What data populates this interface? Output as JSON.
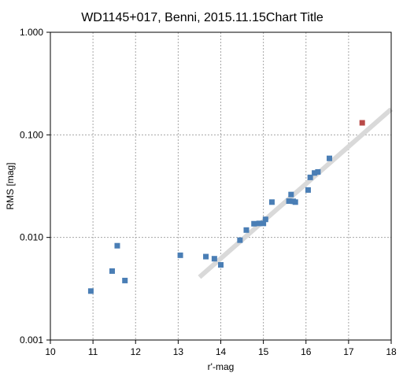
{
  "chart_data": {
    "type": "scatter",
    "title": "WD1145+017, Benni, 2015.11.15Chart Title",
    "xlabel": "r'-mag",
    "ylabel": "RMS [mag]",
    "xlim": [
      10,
      18
    ],
    "ylim": [
      0.001,
      1.0
    ],
    "yscale": "log",
    "grid": true,
    "x_ticks": [
      "10",
      "11",
      "12",
      "13",
      "14",
      "15",
      "16",
      "17",
      "18"
    ],
    "y_ticks": [
      {
        "value": 0.001,
        "label": "0.001"
      },
      {
        "value": 0.01,
        "label": "0.010"
      },
      {
        "value": 0.1,
        "label": "0.100"
      },
      {
        "value": 1.0,
        "label": "1.000"
      }
    ],
    "series": [
      {
        "color": "#4a7eb5",
        "marker": "square",
        "points": [
          [
            10.95,
            0.003
          ],
          [
            11.45,
            0.0047
          ],
          [
            11.57,
            0.0083
          ],
          [
            11.75,
            0.0038
          ],
          [
            13.05,
            0.0067
          ],
          [
            13.65,
            0.0065
          ],
          [
            13.85,
            0.0062
          ],
          [
            14.0,
            0.0054
          ],
          [
            14.45,
            0.0094
          ],
          [
            14.6,
            0.0118
          ],
          [
            14.78,
            0.0136
          ],
          [
            14.9,
            0.0137
          ],
          [
            15.0,
            0.0137
          ],
          [
            15.05,
            0.015
          ],
          [
            15.2,
            0.0221
          ],
          [
            15.6,
            0.0226
          ],
          [
            15.65,
            0.0262
          ],
          [
            15.7,
            0.0225
          ],
          [
            15.75,
            0.0221
          ],
          [
            16.05,
            0.029
          ],
          [
            16.1,
            0.0385
          ],
          [
            16.2,
            0.0425
          ],
          [
            16.28,
            0.0435
          ],
          [
            16.55,
            0.059
          ]
        ]
      },
      {
        "color": "#b94a48",
        "marker": "square",
        "points": [
          [
            17.32,
            0.131
          ]
        ]
      }
    ],
    "trendline": {
      "color": "#d9d9d9",
      "x": [
        13.5,
        18.0
      ],
      "y": [
        0.0041,
        0.178
      ]
    }
  }
}
